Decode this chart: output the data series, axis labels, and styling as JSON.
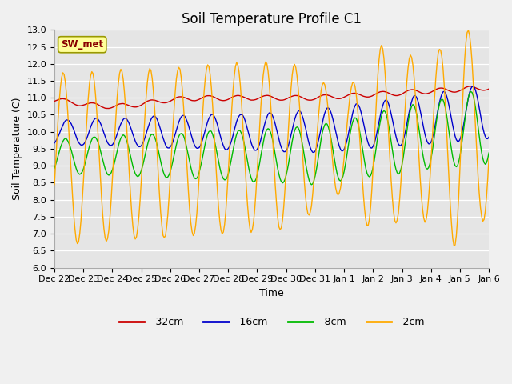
{
  "title": "Soil Temperature Profile C1",
  "xlabel": "Time",
  "ylabel": "Soil Temperature (C)",
  "ylim": [
    6.0,
    13.0
  ],
  "yticks": [
    6.0,
    6.5,
    7.0,
    7.5,
    8.0,
    8.5,
    9.0,
    9.5,
    10.0,
    10.5,
    11.0,
    11.5,
    12.0,
    12.5,
    13.0
  ],
  "xtick_labels": [
    "Dec 22",
    "Dec 23",
    "Dec 24",
    "Dec 25",
    "Dec 26",
    "Dec 27",
    "Dec 28",
    "Dec 29",
    "Dec 30",
    "Dec 31",
    "Jan 1",
    "Jan 2",
    "Jan 3",
    "Jan 4",
    "Jan 5",
    "Jan 6"
  ],
  "legend_label": "SW_met",
  "series_labels": [
    "-32cm",
    "-16cm",
    "-8cm",
    "-2cm"
  ],
  "series_colors": [
    "#cc0000",
    "#0000cc",
    "#00bb00",
    "#ffaa00"
  ],
  "plot_bg_color": "#e5e5e5",
  "fig_bg_color": "#f0f0f0",
  "grid_color": "#ffffff",
  "title_fontsize": 12,
  "axis_fontsize": 9,
  "tick_fontsize": 8,
  "sw_met_box_color": "#ffff99",
  "sw_met_border_color": "#999900",
  "sw_met_text_color": "#880000"
}
